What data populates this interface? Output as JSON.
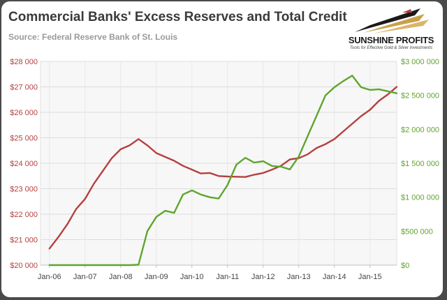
{
  "header": {
    "title": "Commercial Banks' Excess Reserves and Total Credit",
    "subtitle": "Source: Federal Reserve Bank of St. Louis"
  },
  "logo": {
    "name": "SUNSHINE PROFITS",
    "tagline": "Tools for Effective Gold & Silver Investments"
  },
  "chart_data": {
    "type": "line",
    "x_labels": [
      "Jan-06",
      "Jan-07",
      "Jan-08",
      "Jan-09",
      "Jan-10",
      "Jan-11",
      "Jan-12",
      "Jan-13",
      "Jan-14",
      "Jan-15"
    ],
    "x": [
      2006.0,
      2006.25,
      2006.5,
      2006.75,
      2007.0,
      2007.25,
      2007.5,
      2007.75,
      2008.0,
      2008.25,
      2008.5,
      2008.75,
      2009.0,
      2009.25,
      2009.5,
      2009.75,
      2010.0,
      2010.25,
      2010.5,
      2010.75,
      2011.0,
      2011.25,
      2011.5,
      2011.75,
      2012.0,
      2012.25,
      2012.5,
      2012.75,
      2013.0,
      2013.25,
      2013.5,
      2013.75,
      2014.0,
      2014.25,
      2014.5,
      2014.75,
      2015.0,
      2015.25,
      2015.5,
      2015.75
    ],
    "left_axis": {
      "min": 20000,
      "max": 28000,
      "ticks": [
        20000,
        21000,
        22000,
        23000,
        24000,
        25000,
        26000,
        27000,
        28000
      ],
      "tick_labels": [
        "$20 000",
        "$21 000",
        "$22 000",
        "$23 000",
        "$24 000",
        "$25 000",
        "$26 000",
        "$27 000",
        "$28 000"
      ],
      "color": "#b5403f"
    },
    "right_axis": {
      "min": 0,
      "max": 3000000,
      "ticks": [
        0,
        500000,
        1000000,
        1500000,
        2000000,
        2500000,
        3000000
      ],
      "tick_labels": [
        "$0",
        "$500 000",
        "$1 000 000",
        "$1 500 000",
        "$2 000 000",
        "$2 500 000",
        "$3 000 000"
      ],
      "color": "#5fa52c"
    },
    "grid": true,
    "legend": "none",
    "series": [
      {
        "axis": "left",
        "color": "#b5403f",
        "values": [
          20650,
          21100,
          21600,
          22200,
          22600,
          23200,
          23700,
          24200,
          24550,
          24700,
          24950,
          24700,
          24400,
          24250,
          24100,
          23900,
          23750,
          23600,
          23620,
          23500,
          23480,
          23470,
          23460,
          23550,
          23620,
          23750,
          23900,
          24150,
          24200,
          24350,
          24600,
          24750,
          24950,
          25250,
          25550,
          25850,
          26100,
          26450,
          26700,
          27000
        ]
      },
      {
        "axis": "right",
        "color": "#5fa52c",
        "values": [
          0,
          0,
          0,
          0,
          0,
          0,
          0,
          0,
          0,
          0,
          5000,
          500000,
          710000,
          800000,
          770000,
          1040000,
          1100000,
          1040000,
          1000000,
          980000,
          1180000,
          1480000,
          1580000,
          1510000,
          1530000,
          1460000,
          1450000,
          1410000,
          1600000,
          1900000,
          2200000,
          2500000,
          2620000,
          2710000,
          2790000,
          2620000,
          2580000,
          2590000,
          2560000,
          2530000
        ]
      }
    ]
  }
}
